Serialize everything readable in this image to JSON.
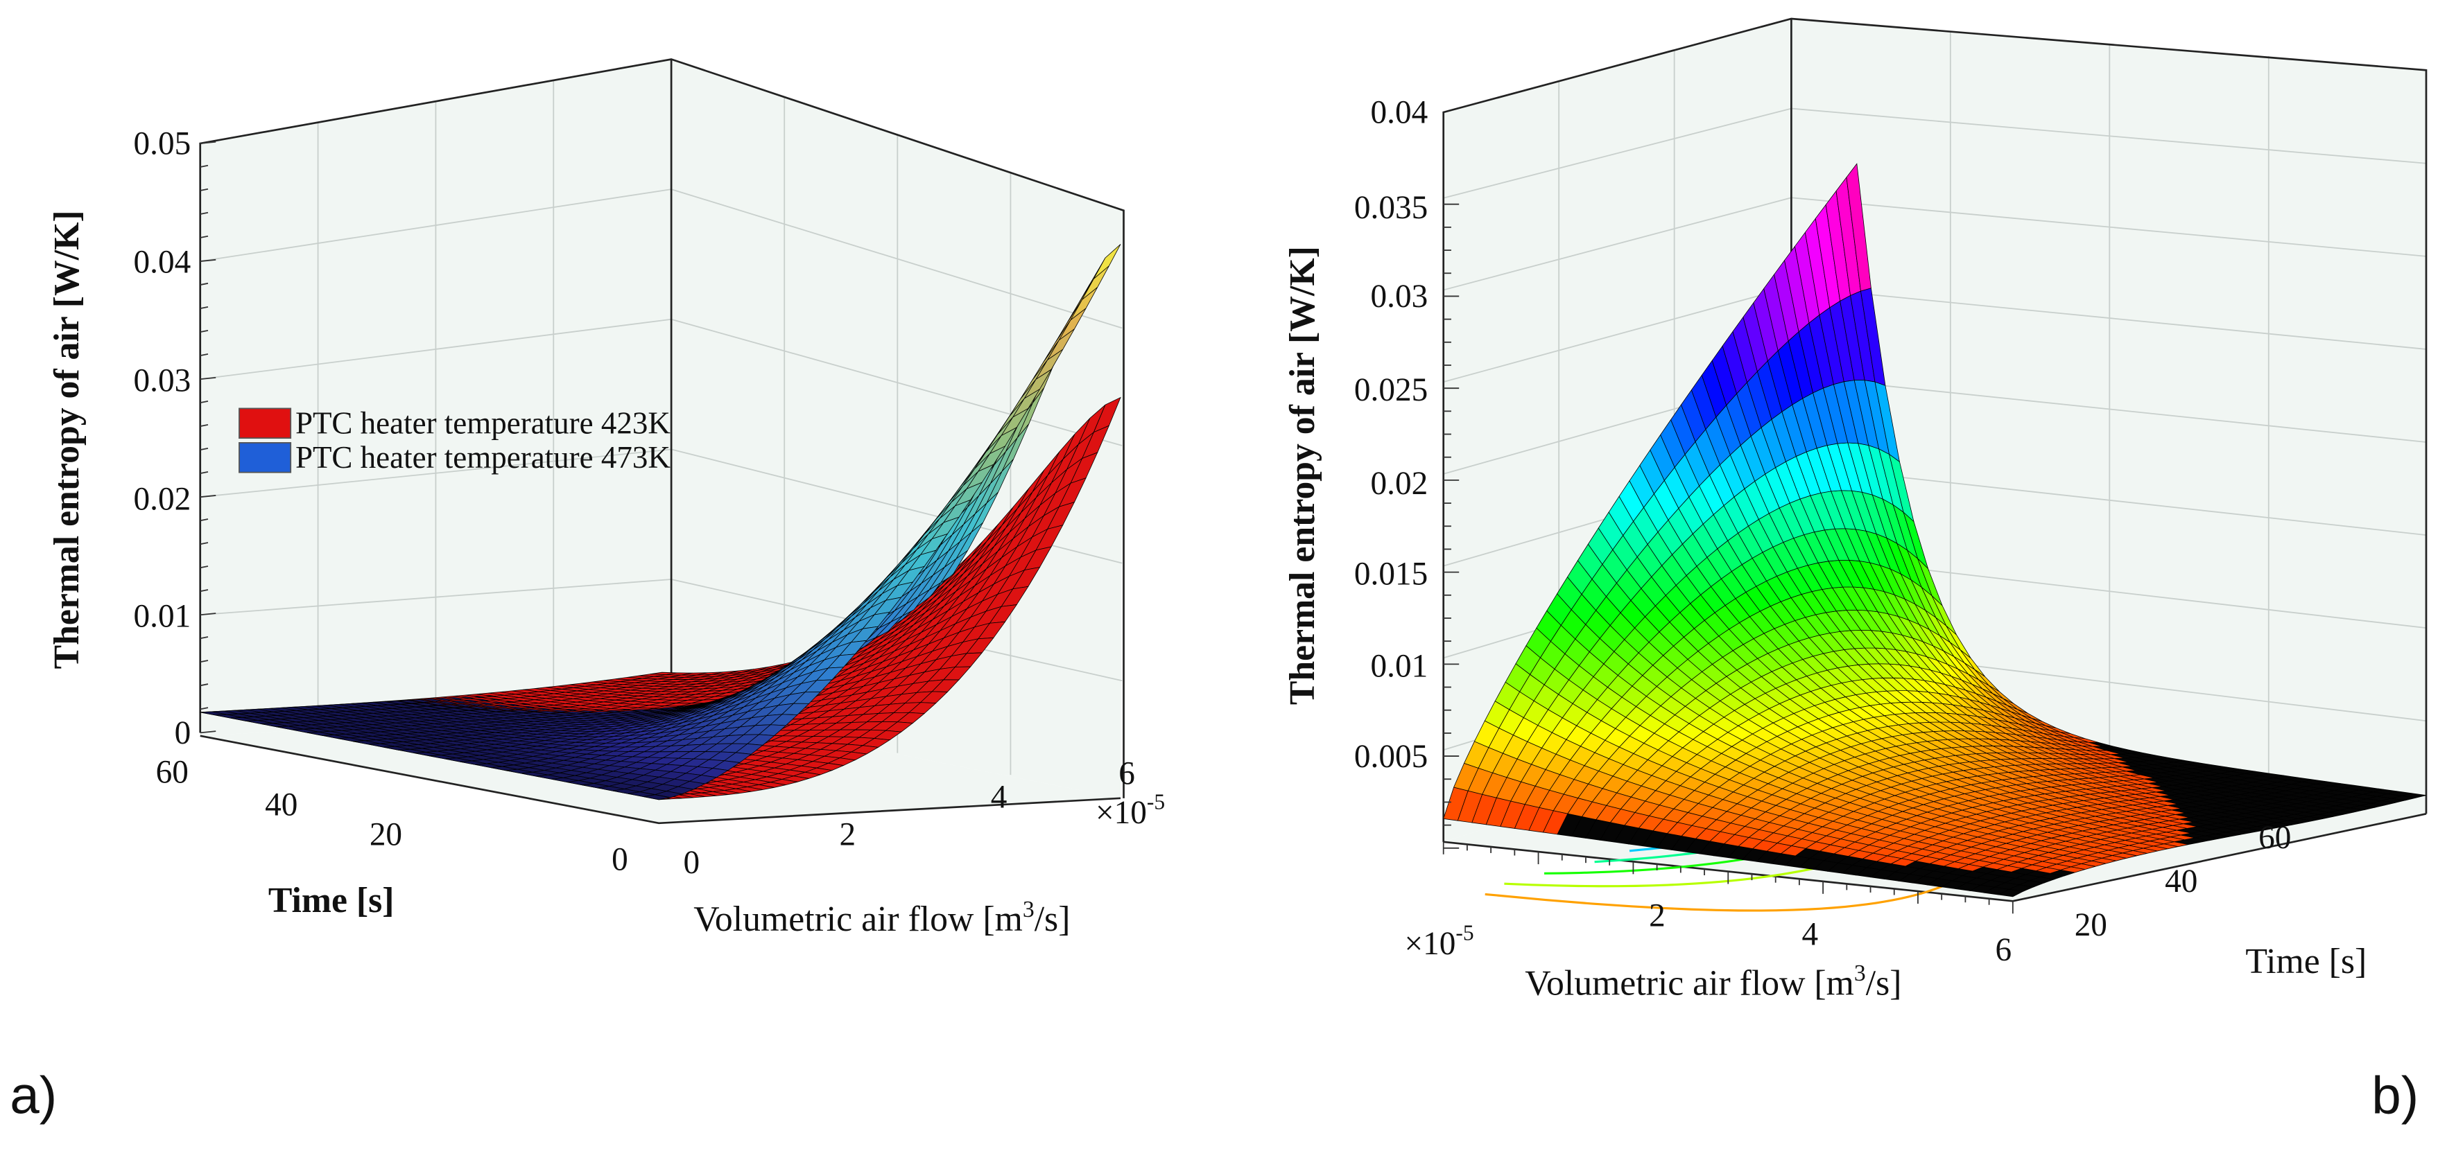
{
  "chart_data": [
    {
      "panel_label": "a)",
      "type": "surface3d",
      "zlabel": "Thermal entropy of air [W/K]",
      "xlabel": "Volumetric air flow [m3/s]",
      "xlabel_main": "Volumetric air flow [m",
      "xlabel_sup": "3",
      "xlabel_end": "/s]",
      "x_multiplier": "×10",
      "x_multiplier_exp": "-5",
      "ylabel": "Time [s]",
      "xlim": [
        0,
        6
      ],
      "ylim": [
        0,
        60
      ],
      "zlim": [
        0,
        0.05
      ],
      "z_ticks": [
        "0",
        "0.01",
        "0.02",
        "0.03",
        "0.04",
        "0.05"
      ],
      "x_ticks": [
        "0",
        "2",
        "4",
        "6"
      ],
      "y_ticks": [
        "0",
        "20",
        "40",
        "60"
      ],
      "legend_placement": "center-left",
      "series": [
        {
          "name": "PTC heater temperature 423K",
          "color": "#e01010",
          "max_value": 0.034,
          "min_value": 0.002
        },
        {
          "name": "PTC heater temperature 473K",
          "color": "#1f5fd8",
          "max_value": 0.047,
          "min_value": 0.002
        }
      ]
    },
    {
      "panel_label": "b)",
      "type": "surface3d",
      "zlabel": "Thermal entropy of air [W/K]",
      "xlabel": "Volumetric air flow [m3/s]",
      "xlabel_main": "Volumetric air flow [m",
      "xlabel_sup": "3",
      "xlabel_end": "/s]",
      "x_multiplier": "×10",
      "x_multiplier_exp": "-5",
      "ylabel": "Time [s]",
      "xlim": [
        0,
        6
      ],
      "ylim": [
        0,
        60
      ],
      "zlim": [
        0,
        0.04
      ],
      "z_ticks": [
        "0.005",
        "0.01",
        "0.015",
        "0.02",
        "0.025",
        "0.03",
        "0.035",
        "0.04"
      ],
      "x_ticks": [
        "2",
        "4",
        "6"
      ],
      "y_ticks": [
        "20",
        "40",
        "60"
      ],
      "colormap": "hsv",
      "floor_contours": true,
      "max_value": 0.037,
      "min_value": 0.001
    }
  ]
}
